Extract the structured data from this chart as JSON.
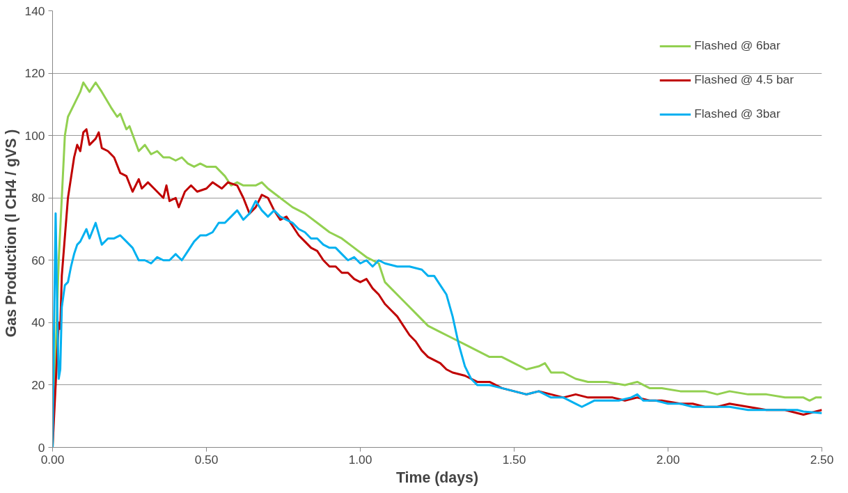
{
  "chart_data": {
    "type": "line",
    "xlabel": "Time (days)",
    "ylabel": "Gas Production  (l CH4  / gVS )",
    "xlim": [
      0,
      2.5
    ],
    "ylim": [
      0,
      140
    ],
    "xticks": [
      {
        "value": 0,
        "label": "0.00"
      },
      {
        "value": 0.5,
        "label": "0.50"
      },
      {
        "value": 1,
        "label": "1.00"
      },
      {
        "value": 1.5,
        "label": "1.50"
      },
      {
        "value": 2,
        "label": "2.00"
      },
      {
        "value": 2.5,
        "label": "2.50"
      }
    ],
    "yticks": [
      0,
      20,
      40,
      60,
      80,
      100,
      120,
      140
    ],
    "grid": "y",
    "legend": "top right",
    "marker": "none",
    "line_style": "solid",
    "series": [
      {
        "name": "Flashed @ 6bar",
        "color": "#92d050",
        "x": [
          0,
          0.02,
          0.04,
          0.05,
          0.07,
          0.09,
          0.1,
          0.12,
          0.14,
          0.16,
          0.19,
          0.21,
          0.22,
          0.24,
          0.25,
          0.28,
          0.3,
          0.32,
          0.34,
          0.36,
          0.38,
          0.4,
          0.42,
          0.44,
          0.46,
          0.48,
          0.5,
          0.53,
          0.56,
          0.58,
          0.6,
          0.62,
          0.66,
          0.68,
          0.7,
          0.74,
          0.78,
          0.82,
          0.86,
          0.9,
          0.94,
          0.98,
          1.02,
          1.06,
          1.08,
          1.1,
          1.14,
          1.18,
          1.22,
          1.26,
          1.3,
          1.34,
          1.38,
          1.42,
          1.46,
          1.5,
          1.54,
          1.58,
          1.6,
          1.62,
          1.66,
          1.7,
          1.74,
          1.8,
          1.86,
          1.9,
          1.94,
          1.98,
          2.04,
          2.08,
          2.12,
          2.16,
          2.2,
          2.26,
          2.32,
          2.38,
          2.44,
          2.46,
          2.48,
          2.5
        ],
        "values": [
          0,
          60,
          100,
          106,
          110,
          114,
          117,
          114,
          117,
          114,
          109,
          106,
          107,
          102,
          103,
          95,
          97,
          94,
          95,
          93,
          93,
          92,
          93,
          91,
          90,
          91,
          90,
          90,
          87,
          84,
          85,
          84,
          84,
          85,
          83,
          80,
          77,
          75,
          72,
          69,
          67,
          64,
          61,
          59,
          53,
          51,
          47,
          43,
          39,
          37,
          35,
          33,
          31,
          29,
          29,
          27,
          25,
          26,
          27,
          24,
          24,
          22,
          21,
          21,
          20,
          21,
          19,
          19,
          18,
          18,
          18,
          17,
          18,
          17,
          17,
          16,
          16,
          15,
          16,
          16
        ]
      },
      {
        "name": "Flashed @ 4.5 bar",
        "color": "#c00000",
        "x": [
          0,
          0.02,
          0.025,
          0.03,
          0.05,
          0.07,
          0.08,
          0.09,
          0.1,
          0.11,
          0.12,
          0.14,
          0.15,
          0.16,
          0.18,
          0.2,
          0.22,
          0.24,
          0.26,
          0.28,
          0.29,
          0.31,
          0.33,
          0.36,
          0.37,
          0.38,
          0.4,
          0.41,
          0.43,
          0.45,
          0.47,
          0.5,
          0.52,
          0.55,
          0.57,
          0.6,
          0.62,
          0.64,
          0.66,
          0.68,
          0.7,
          0.72,
          0.74,
          0.76,
          0.78,
          0.8,
          0.82,
          0.84,
          0.86,
          0.88,
          0.9,
          0.92,
          0.94,
          0.96,
          0.98,
          1.0,
          1.02,
          1.04,
          1.06,
          1.08,
          1.1,
          1.12,
          1.14,
          1.16,
          1.18,
          1.2,
          1.22,
          1.24,
          1.26,
          1.28,
          1.3,
          1.34,
          1.38,
          1.42,
          1.46,
          1.5,
          1.54,
          1.58,
          1.62,
          1.66,
          1.7,
          1.74,
          1.78,
          1.82,
          1.86,
          1.9,
          1.94,
          1.98,
          2.04,
          2.08,
          2.12,
          2.16,
          2.2,
          2.26,
          2.32,
          2.38,
          2.42,
          2.44,
          2.5
        ],
        "values": [
          0,
          40,
          38,
          55,
          80,
          93,
          97,
          95,
          101,
          102,
          97,
          99,
          101,
          96,
          95,
          93,
          88,
          87,
          82,
          86,
          83,
          85,
          83,
          80,
          84,
          79,
          80,
          77,
          82,
          84,
          82,
          83,
          85,
          83,
          85,
          84,
          80,
          75,
          77,
          81,
          80,
          76,
          73,
          74,
          71,
          68,
          66,
          64,
          63,
          60,
          58,
          58,
          56,
          56,
          54,
          53,
          54,
          51,
          49,
          46,
          44,
          42,
          39,
          36,
          34,
          31,
          29,
          28,
          27,
          25,
          24,
          23,
          21,
          21,
          19,
          18,
          17,
          18,
          17,
          16,
          17,
          16,
          16,
          16,
          15,
          16,
          15,
          15,
          14,
          14,
          13,
          13,
          14,
          13,
          12,
          12,
          11,
          10.5,
          12
        ]
      },
      {
        "name": "Flashed @ 3bar",
        "color": "#00b0f0",
        "x": [
          0,
          0.005,
          0.01,
          0.015,
          0.02,
          0.025,
          0.03,
          0.04,
          0.05,
          0.06,
          0.07,
          0.08,
          0.09,
          0.1,
          0.11,
          0.12,
          0.14,
          0.16,
          0.18,
          0.2,
          0.22,
          0.24,
          0.26,
          0.28,
          0.3,
          0.32,
          0.34,
          0.36,
          0.38,
          0.4,
          0.42,
          0.44,
          0.46,
          0.48,
          0.5,
          0.52,
          0.54,
          0.56,
          0.58,
          0.6,
          0.62,
          0.64,
          0.66,
          0.68,
          0.7,
          0.72,
          0.74,
          0.76,
          0.78,
          0.8,
          0.82,
          0.84,
          0.86,
          0.88,
          0.9,
          0.92,
          0.94,
          0.96,
          0.98,
          1.0,
          1.02,
          1.04,
          1.06,
          1.08,
          1.12,
          1.16,
          1.2,
          1.22,
          1.24,
          1.26,
          1.28,
          1.3,
          1.32,
          1.34,
          1.36,
          1.38,
          1.42,
          1.46,
          1.5,
          1.54,
          1.58,
          1.62,
          1.66,
          1.7,
          1.72,
          1.74,
          1.76,
          1.8,
          1.84,
          1.88,
          1.9,
          1.92,
          1.96,
          2.0,
          2.04,
          2.08,
          2.12,
          2.16,
          2.2,
          2.26,
          2.32,
          2.38,
          2.42,
          2.44,
          2.5
        ],
        "values": [
          0,
          40,
          75,
          45,
          22,
          25,
          45,
          52,
          53,
          58,
          62,
          65,
          66,
          68,
          70,
          67,
          72,
          65,
          67,
          67,
          68,
          66,
          64,
          60,
          60,
          59,
          61,
          60,
          60,
          62,
          60,
          63,
          66,
          68,
          68,
          69,
          72,
          72,
          74,
          76,
          73,
          75,
          79,
          76,
          74,
          76,
          74,
          73,
          72,
          70,
          69,
          67,
          67,
          65,
          64,
          64,
          62,
          60,
          61,
          59,
          60,
          58,
          60,
          59,
          58,
          58,
          57,
          55,
          55,
          52,
          49,
          42,
          33,
          26,
          22,
          20,
          20,
          19,
          18,
          17,
          18,
          16,
          16,
          14,
          13,
          14,
          15,
          15,
          15,
          16,
          17,
          15,
          15,
          14,
          14,
          13,
          13,
          13,
          13,
          12,
          12,
          12,
          12,
          11.5,
          11
        ]
      }
    ]
  }
}
